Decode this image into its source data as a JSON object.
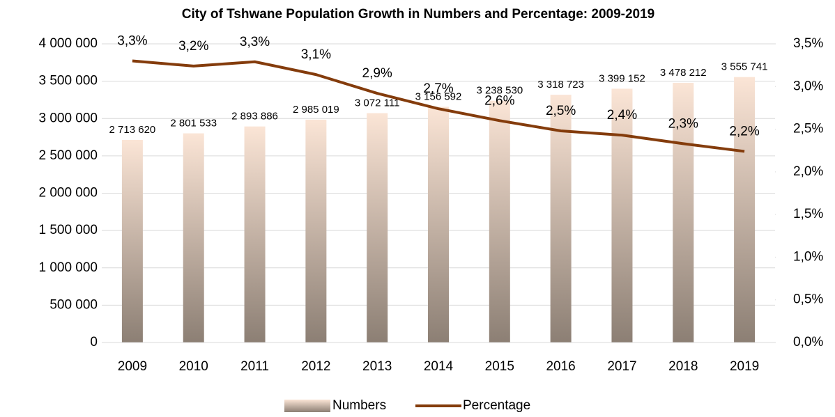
{
  "chart_data": {
    "type": "bar_line",
    "title": "City of Tshwane Population Growth in  Numbers and Percentage: 2009-2019",
    "categories": [
      "2009",
      "2010",
      "2011",
      "2012",
      "2013",
      "2014",
      "2015",
      "2016",
      "2017",
      "2018",
      "2019"
    ],
    "series": [
      {
        "name": "Numbers",
        "type": "bar",
        "color": "#fbe5d6",
        "color_bottom": "#8c7f74",
        "values": [
          2713620,
          2801533,
          2893886,
          2985019,
          3072111,
          3156592,
          3238530,
          3318723,
          3399152,
          3478212,
          3555741
        ],
        "value_labels": [
          "2 713 620",
          "2 801 533",
          "2 893 886",
          "2 985 019",
          "3 072 111",
          "3 156 592",
          "3 238 530",
          "3 318 723",
          "3 399 152",
          "3 478 212",
          "3 555 741"
        ]
      },
      {
        "name": "Percentage",
        "type": "line",
        "axis": "y2",
        "color": "#843c0c",
        "values": [
          3.3,
          3.24,
          3.29,
          3.14,
          2.92,
          2.74,
          2.6,
          2.48,
          2.43,
          2.33,
          2.24
        ],
        "value_labels": [
          "3,3%",
          "3,2%",
          "3,3%",
          "3,1%",
          "2,9%",
          "2,7%",
          "2,6%",
          "2,5%",
          "2,4%",
          "2,3%",
          "2,2%"
        ]
      }
    ],
    "ylim": [
      0,
      4000000
    ],
    "yticks": [
      0,
      {
        "value": 500000,
        "label": "500 000"
      },
      {
        "value": 1000000,
        "label": "1 000 000"
      },
      {
        "value": 1500000,
        "label": "1 500 000"
      },
      {
        "value": 2000000,
        "label": "2 000 000"
      },
      {
        "value": 2500000,
        "label": "2 500 000"
      },
      {
        "value": 3000000,
        "label": "3 000 000"
      },
      {
        "value": 3500000,
        "label": "3 500 000"
      },
      {
        "value": 4000000,
        "label": "4 000 000"
      }
    ],
    "y2lim": [
      0,
      3.5
    ],
    "y2ticks": [
      {
        "value": 0,
        "label": "0,0%"
      },
      {
        "value": 0.5,
        "label": "0,5%"
      },
      {
        "value": 1,
        "label": "1,0%"
      },
      {
        "value": 1.5,
        "label": "1,5%"
      },
      {
        "value": 2,
        "label": "2,0%"
      },
      {
        "value": 2.5,
        "label": "2,5%"
      },
      {
        "value": 3,
        "label": "3,0%"
      },
      {
        "value": 3.5,
        "label": "3,5%"
      }
    ],
    "grid": true,
    "legend": "bottom"
  }
}
